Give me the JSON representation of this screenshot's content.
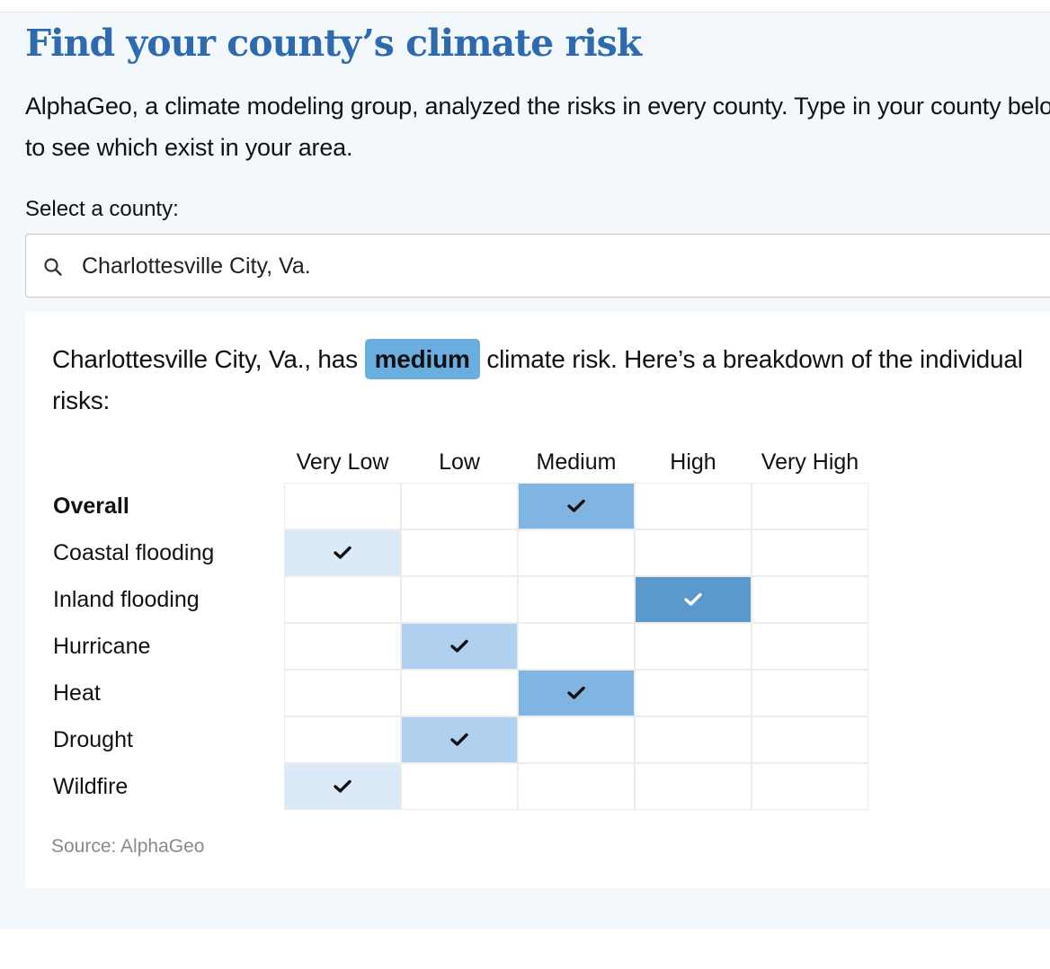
{
  "header": {
    "title": "Find your county’s climate risk",
    "intro": "AlphaGeo, a climate modeling group, analyzed the risks in every county. Type in your county below to see which exist in your area."
  },
  "search": {
    "label": "Select a county:",
    "value": "Charlottesville City, Va.",
    "icon": "search-icon"
  },
  "result": {
    "prefix": "Charlottesville City, Va., has",
    "level": "medium",
    "suffix": "climate risk. Here’s a breakdown of the individual risks:",
    "badge_color": "#6aaee0"
  },
  "grid": {
    "levels": [
      "Very Low",
      "Low",
      "Medium",
      "High",
      "Very High"
    ],
    "level_colors": [
      "#dbeaf6",
      "#afd0ee",
      "#80b5e3",
      "#5b98cc",
      "#3f7fbf"
    ],
    "rows": [
      {
        "label": "Overall",
        "level": 2,
        "bold": true
      },
      {
        "label": "Coastal flooding",
        "level": 0
      },
      {
        "label": "Inland flooding",
        "level": 3
      },
      {
        "label": "Hurricane",
        "level": 1
      },
      {
        "label": "Heat",
        "level": 2
      },
      {
        "label": "Drought",
        "level": 1
      },
      {
        "label": "Wildfire",
        "level": 0
      }
    ]
  },
  "source": "Source: AlphaGeo"
}
